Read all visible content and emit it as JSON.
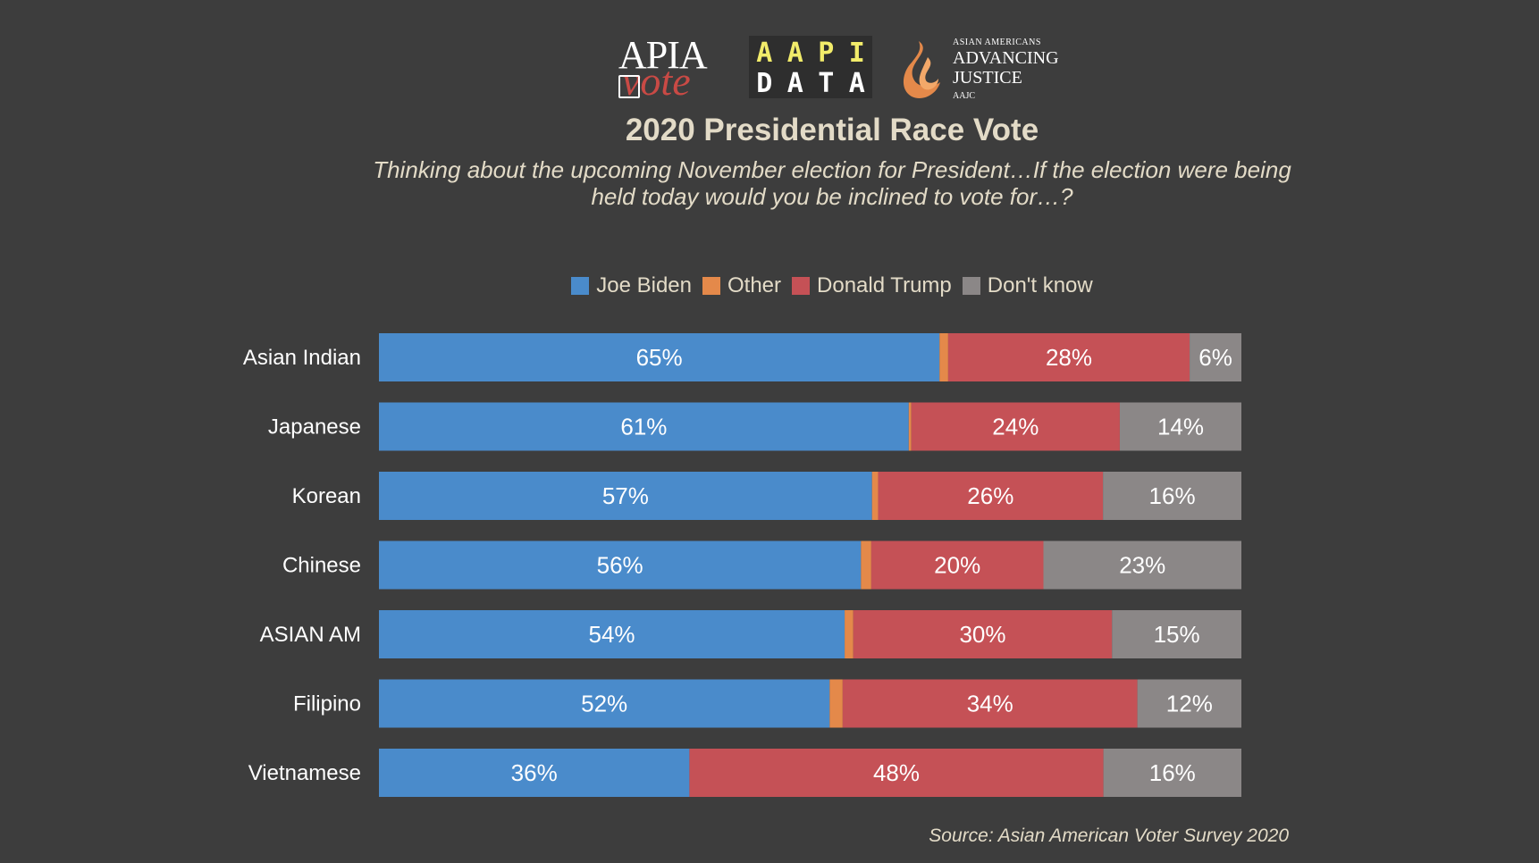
{
  "logos": {
    "apia": {
      "line1": "APIA",
      "line2": "vote"
    },
    "aapi_data": {
      "row1": [
        "A",
        "A",
        "P",
        "I"
      ],
      "row2": [
        "D",
        "A",
        "T",
        "A"
      ]
    },
    "aajc": {
      "small": "ASIAN AMERICANS",
      "line1": "ADVANCING",
      "line2": "JUSTICE",
      "tiny": "AAJC"
    }
  },
  "colors": {
    "background": "#3d3d3d",
    "text": "#e3dbc7",
    "label_text": "#ffffff",
    "biden": "#4a8bcb",
    "other": "#e4894a",
    "trump": "#c55156",
    "dont_know": "#8b8787"
  },
  "chart_data": {
    "type": "bar",
    "orientation": "horizontal",
    "stacked": true,
    "title": "2020 Presidential Race Vote",
    "subtitle_line1": "Thinking about the upcoming November election for President…If the election were being",
    "subtitle_line2": "held today would you be inclined to vote for…?",
    "categories": [
      "Asian Indian",
      "Japanese",
      "Korean",
      "Chinese",
      "ASIAN AM",
      "Filipino",
      "Vietnamese"
    ],
    "series": [
      {
        "name": "Joe Biden",
        "color_key": "biden",
        "values": [
          65,
          61,
          57,
          56,
          54,
          52,
          36
        ],
        "labels": [
          "65%",
          "61%",
          "57%",
          "56%",
          "54%",
          "52%",
          "36%"
        ]
      },
      {
        "name": "Other",
        "color_key": "other",
        "values": [
          1,
          0.3,
          0.7,
          1.2,
          1,
          1.5,
          0
        ],
        "labels": [
          "",
          "",
          "",
          "",
          "",
          "",
          ""
        ]
      },
      {
        "name": "Donald Trump",
        "color_key": "trump",
        "values": [
          28,
          24,
          26,
          20,
          30,
          34,
          48
        ],
        "labels": [
          "28%",
          "24%",
          "26%",
          "20%",
          "30%",
          "34%",
          "48%"
        ]
      },
      {
        "name": "Don't know",
        "color_key": "dont_know",
        "values": [
          6,
          14,
          16,
          23,
          15,
          12,
          16
        ],
        "labels": [
          "6%",
          "14%",
          "16%",
          "23%",
          "15%",
          "12%",
          "16%"
        ]
      }
    ],
    "legend_position": "top",
    "source": "Source: Asian American Voter Survey 2020"
  }
}
